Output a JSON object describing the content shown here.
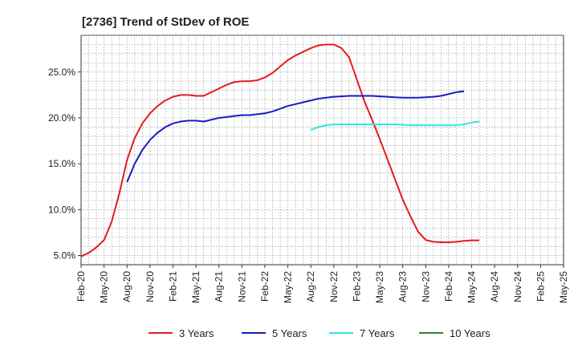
{
  "chart_data": {
    "type": "line",
    "title": "[2736]  Trend of StDev of ROE",
    "xlabel": "",
    "ylabel": "",
    "x_ticks": [
      "Feb-20",
      "May-20",
      "Aug-20",
      "Nov-20",
      "Feb-21",
      "May-21",
      "Aug-21",
      "Nov-21",
      "Feb-22",
      "May-22",
      "Aug-22",
      "Nov-22",
      "Feb-23",
      "May-23",
      "Aug-23",
      "Nov-23",
      "Feb-24",
      "May-24",
      "Aug-24",
      "Nov-24",
      "Feb-25",
      "May-25"
    ],
    "y_ticks": [
      "5.0%",
      "10.0%",
      "15.0%",
      "20.0%",
      "25.0%"
    ],
    "y_tick_values": [
      5,
      10,
      15,
      20,
      25
    ],
    "ylim": [
      4.0,
      29.0
    ],
    "grid": true,
    "legend_position": "bottom",
    "series": [
      {
        "name": "3 Years",
        "color": "#e31a1c",
        "start_index": 0,
        "values": [
          4.9,
          5.3,
          5.9,
          6.7,
          8.7,
          11.8,
          15.4,
          17.8,
          19.4,
          20.5,
          21.3,
          21.9,
          22.3,
          22.5,
          22.5,
          22.4,
          22.4,
          22.8,
          23.2,
          23.6,
          23.9,
          24.0,
          24.0,
          24.1,
          24.4,
          24.9,
          25.6,
          26.3,
          26.8,
          27.2,
          27.6,
          27.9,
          28.0,
          28.0,
          27.6,
          26.6,
          24.2,
          21.8,
          19.8,
          17.7,
          15.5,
          13.3,
          11.1,
          9.3,
          7.6,
          6.7,
          6.5,
          6.45,
          6.45,
          6.5,
          6.6,
          6.65,
          6.65
        ]
      },
      {
        "name": "5 Years",
        "color": "#1a1ac8",
        "start_index": 6,
        "values": [
          13.0,
          15.0,
          16.5,
          17.6,
          18.4,
          19.0,
          19.4,
          19.6,
          19.7,
          19.7,
          19.6,
          19.8,
          20.0,
          20.1,
          20.2,
          20.3,
          20.3,
          20.4,
          20.5,
          20.7,
          21.0,
          21.3,
          21.5,
          21.7,
          21.9,
          22.1,
          22.2,
          22.3,
          22.35,
          22.4,
          22.4,
          22.4,
          22.4,
          22.35,
          22.3,
          22.25,
          22.2,
          22.2,
          22.2,
          22.25,
          22.3,
          22.4,
          22.6,
          22.8,
          22.9
        ]
      },
      {
        "name": "7 Years",
        "color": "#33e6e6",
        "start_index": 30,
        "values": [
          18.7,
          19.0,
          19.2,
          19.3,
          19.3,
          19.3,
          19.3,
          19.3,
          19.3,
          19.3,
          19.3,
          19.3,
          19.25,
          19.2,
          19.2,
          19.2,
          19.2,
          19.2,
          19.2,
          19.2,
          19.3,
          19.5,
          19.6
        ]
      },
      {
        "name": "10 Years",
        "color": "#2a8a2a",
        "start_index": 0,
        "values": []
      }
    ]
  }
}
